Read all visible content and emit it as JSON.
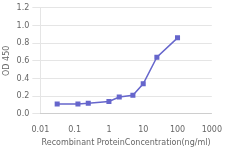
{
  "chart_data": {
    "type": "line",
    "x": [
      0.031,
      0.125,
      0.25,
      1.0,
      2.0,
      5.0,
      10.0,
      25.0,
      100.0
    ],
    "values": [
      0.11,
      0.11,
      0.12,
      0.14,
      0.19,
      0.21,
      0.34,
      0.64,
      0.86
    ],
    "color": "#6666cc",
    "marker": "square",
    "xlabel": "Recombinant ProteinConcentration(ng/ml)",
    "ylabel": "OD 450",
    "log": "x",
    "xlim": [
      0.01,
      1000
    ],
    "ylim": [
      0,
      1.2
    ],
    "xticks": [
      0.01,
      0.1,
      1,
      10,
      100,
      1000
    ],
    "yticks": [
      {
        "value": 0,
        "label": "0.0"
      },
      0.2,
      0.4,
      0.6,
      0.8,
      {
        "value": 1.0,
        "label": "1.0"
      },
      1.2
    ],
    "grid": "y"
  }
}
